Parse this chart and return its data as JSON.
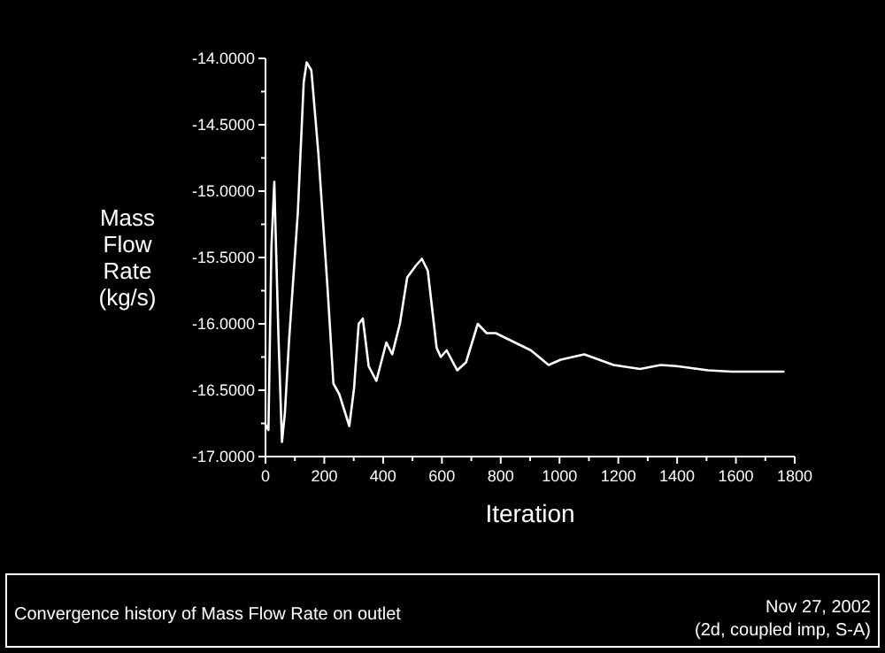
{
  "chart_data": {
    "type": "line",
    "xlabel": "Iteration",
    "ylabel": "Mass Flow Rate (kg/s)",
    "annotations": [
      "Convergence history of Mass Flow Rate on outlet",
      "Nov 27, 2002",
      "(2d, coupled imp, S-A)"
    ],
    "xlim": [
      0,
      1800
    ],
    "ylim": [
      -17,
      -14
    ],
    "xticks": [
      0,
      {
        "value": 100,
        "label": null
      },
      200,
      {
        "value": 300,
        "label": null
      },
      400,
      {
        "value": 500,
        "label": null
      },
      600,
      {
        "value": 700,
        "label": null
      },
      800,
      {
        "value": 900,
        "label": null
      },
      1000,
      {
        "value": 1100,
        "label": null
      },
      1200,
      {
        "value": 1300,
        "label": null
      },
      1400,
      {
        "value": 1500,
        "label": null
      },
      1600,
      {
        "value": 1700,
        "label": null
      },
      1800
    ],
    "yticks": [
      {
        "value": -17,
        "label": "-17.0000"
      },
      {
        "value": -16.75,
        "label": null
      },
      {
        "value": -16.5,
        "label": "-16.5000"
      },
      {
        "value": -16.25,
        "label": null
      },
      {
        "value": -16,
        "label": "-16.0000"
      },
      {
        "value": -15.75,
        "label": null
      },
      {
        "value": -15.5,
        "label": "-15.5000"
      },
      {
        "value": -15.25,
        "label": null
      },
      {
        "value": -15,
        "label": "-15.0000"
      },
      {
        "value": -14.75,
        "label": null
      },
      {
        "value": -14.5,
        "label": "-14.5000"
      },
      {
        "value": -14.25,
        "label": null
      },
      {
        "value": -14,
        "label": "-14.0000"
      }
    ],
    "grid": false,
    "marker": "none",
    "line_style": "solid",
    "x": [
      0,
      10,
      20,
      30,
      35,
      44,
      56,
      66,
      80,
      110,
      130,
      140,
      156,
      180,
      211,
      231,
      251,
      285,
      301,
      317,
      331,
      351,
      377,
      411,
      431,
      457,
      482,
      512,
      532,
      552,
      582,
      596,
      616,
      652,
      682,
      722,
      752,
      783,
      903,
      963,
      1004,
      1084,
      1184,
      1274,
      1344,
      1404,
      1505,
      1585,
      1765
    ],
    "series": [
      {
        "color": "#ffffff",
        "values": [
          -16.76,
          -16.8,
          -15.43,
          -14.93,
          -15.36,
          -16.09,
          -16.89,
          -16.67,
          -16.13,
          -15.16,
          -14.18,
          -14.03,
          -14.09,
          -14.72,
          -15.73,
          -16.45,
          -16.53,
          -16.77,
          -16.49,
          -16.0,
          -15.96,
          -16.32,
          -16.43,
          -16.14,
          -16.23,
          -16.0,
          -15.65,
          -15.56,
          -15.51,
          -15.6,
          -16.18,
          -16.25,
          -16.2,
          -16.35,
          -16.29,
          -16.0,
          -16.07,
          -16.07,
          -16.2,
          -16.31,
          -16.27,
          -16.23,
          -16.31,
          -16.34,
          -16.31,
          -16.32,
          -16.35,
          -16.36,
          -16.36
        ]
      }
    ]
  }
}
